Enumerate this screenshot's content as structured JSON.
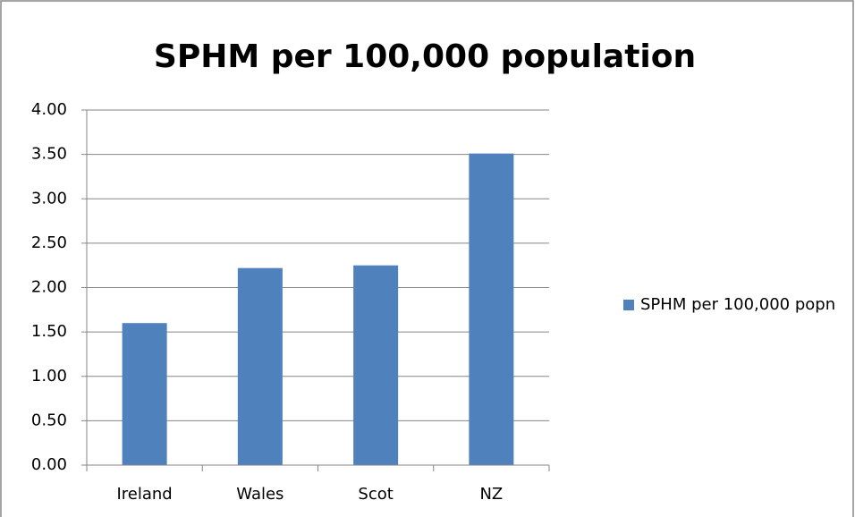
{
  "chart_data": {
    "type": "bar",
    "title": "SPHM per 100,000 population",
    "categories": [
      "Ireland",
      "Wales",
      "Scot",
      "NZ"
    ],
    "series": [
      {
        "name": "SPHM per 100,000 popn",
        "color": "#4f81bd",
        "values": [
          1.6,
          2.22,
          2.25,
          3.51
        ]
      }
    ],
    "ylim": [
      0,
      4
    ],
    "yticks": [
      {
        "value": 0,
        "label": "0.00"
      },
      {
        "value": 0.5,
        "label": "0.50"
      },
      {
        "value": 1,
        "label": "1.00"
      },
      {
        "value": 1.5,
        "label": "1.50"
      },
      {
        "value": 2,
        "label": "2.00"
      },
      {
        "value": 2.5,
        "label": "2.50"
      },
      {
        "value": 3,
        "label": "3.00"
      },
      {
        "value": 3.5,
        "label": "3.50"
      },
      {
        "value": 4,
        "label": "4.00"
      }
    ],
    "grid": true,
    "legend": "right"
  }
}
